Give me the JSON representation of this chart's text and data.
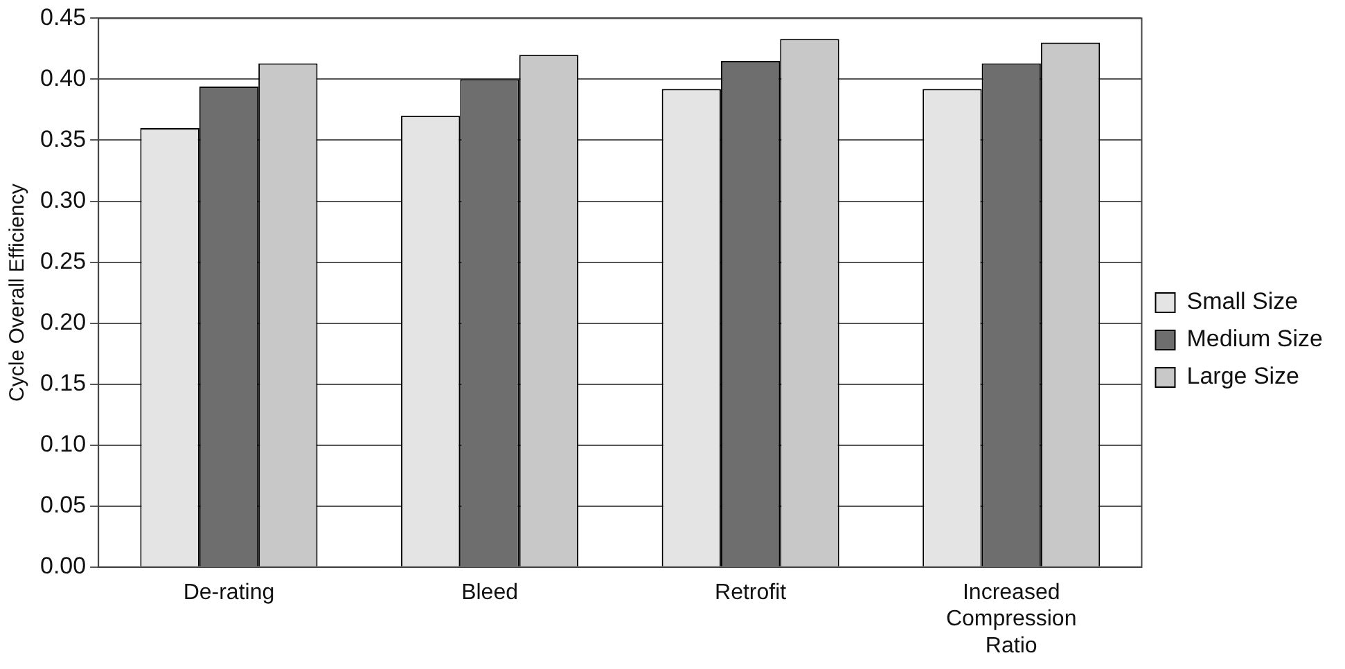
{
  "chart_data": {
    "type": "bar",
    "ylabel": "Cycle Overall Efficiency",
    "categories": [
      "De-rating",
      "Bleed",
      "Retrofit",
      "Increased Compression Ratio"
    ],
    "series": [
      {
        "name": "Small Size",
        "color": "#e4e4e4",
        "values": [
          0.36,
          0.37,
          0.392,
          0.392
        ]
      },
      {
        "name": "Medium Size",
        "color": "#6e6e6e",
        "values": [
          0.394,
          0.4,
          0.415,
          0.413
        ]
      },
      {
        "name": "Large Size",
        "color": "#c8c8c8",
        "values": [
          0.413,
          0.42,
          0.433,
          0.43
        ]
      }
    ],
    "ylim": [
      0,
      0.45
    ],
    "yticks": [
      {
        "value": 0,
        "label": "0.00"
      },
      {
        "value": 0.05,
        "label": "0.05"
      },
      {
        "value": 0.1,
        "label": "0.10"
      },
      {
        "value": 0.15,
        "label": "0.15"
      },
      {
        "value": 0.2,
        "label": "0.20"
      },
      {
        "value": 0.25,
        "label": "0.25"
      },
      {
        "value": 0.3,
        "label": "0.30"
      },
      {
        "value": 0.35,
        "label": "0.35"
      },
      {
        "value": 0.4,
        "label": "0.40"
      },
      {
        "value": 0.45,
        "label": "0.45"
      }
    ],
    "grid": "y",
    "legend": "right"
  }
}
